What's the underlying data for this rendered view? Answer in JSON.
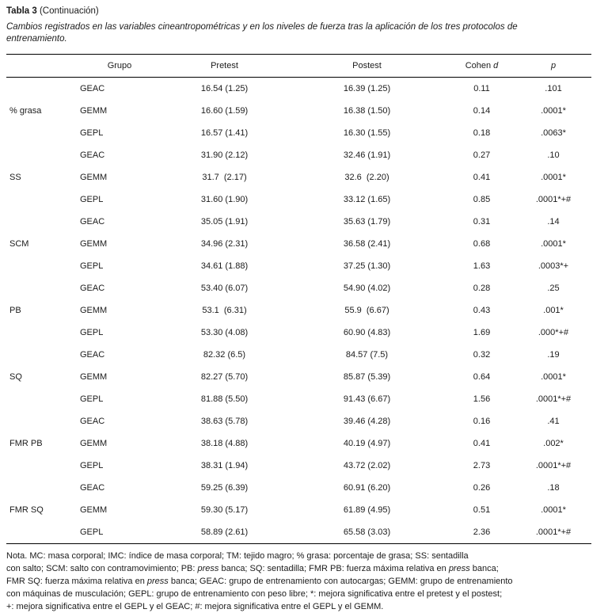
{
  "page": {
    "background": "#ffffff",
    "text_color": "#1b1b1b"
  },
  "title": {
    "bold": "Tabla 3",
    "rest": " (Continuación)"
  },
  "subtitle": {
    "line1": "Cambios registrados en las variables cineantropométricas y en los niveles de fuerza tras la aplicación de los tres protocolos de",
    "line2": "entrenamiento."
  },
  "table": {
    "headers": {
      "grupo": "Grupo",
      "pretest": "Pretest",
      "postest": "Postest",
      "cohen_prefix": "Cohen ",
      "cohen_italic": "d",
      "p": "p"
    },
    "groups": [
      {
        "label": "% grasa",
        "rows": [
          {
            "grupo": "GEAC",
            "pretest": "16.54 (1.25)",
            "postest": "16.39 (1.25)",
            "cohen": "0.11",
            "p": ".101"
          },
          {
            "grupo": "GEMM",
            "pretest": "16.60 (1.59)",
            "postest": "16.38 (1.50)",
            "cohen": "0.14",
            "p": ".0001*"
          },
          {
            "grupo": "GEPL",
            "pretest": "16.57 (1.41)",
            "postest": "16.30 (1.55)",
            "cohen": "0.18",
            "p": ".0063*"
          }
        ]
      },
      {
        "label": "SS",
        "rows": [
          {
            "grupo": "GEAC",
            "pretest": "31.90 (2.12)",
            "postest": "32.46 (1.91)",
            "cohen": "0.27",
            "p": ".10"
          },
          {
            "grupo": "GEMM",
            "pretest": "31.7  (2.17)",
            "postest": "32.6  (2.20)",
            "cohen": "0.41",
            "p": ".0001*"
          },
          {
            "grupo": "GEPL",
            "pretest": "31.60 (1.90)",
            "postest": "33.12 (1.65)",
            "cohen": "0.85",
            "p": ".0001*+#"
          }
        ]
      },
      {
        "label": "SCM",
        "rows": [
          {
            "grupo": "GEAC",
            "pretest": "35.05 (1.91)",
            "postest": "35.63 (1.79)",
            "cohen": "0.31",
            "p": ".14"
          },
          {
            "grupo": "GEMM",
            "pretest": "34.96 (2.31)",
            "postest": "36.58 (2.41)",
            "cohen": "0.68",
            "p": ".0001*"
          },
          {
            "grupo": "GEPL",
            "pretest": "34.61 (1.88)",
            "postest": "37.25 (1.30)",
            "cohen": "1.63",
            "p": ".0003*+"
          }
        ]
      },
      {
        "label": "PB",
        "rows": [
          {
            "grupo": "GEAC",
            "pretest": "53.40 (6.07)",
            "postest": "54.90 (4.02)",
            "cohen": "0.28",
            "p": ".25"
          },
          {
            "grupo": "GEMM",
            "pretest": "53.1  (6.31)",
            "postest": "55.9  (6.67)",
            "cohen": "0.43",
            "p": ".001*"
          },
          {
            "grupo": "GEPL",
            "pretest": "53.30 (4.08)",
            "postest": "60.90 (4.83)",
            "cohen": "1.69",
            "p": ".000*+#"
          }
        ]
      },
      {
        "label": "SQ",
        "rows": [
          {
            "grupo": "GEAC",
            "pretest": "82.32 (6.5)",
            "postest": "84.57 (7.5)",
            "cohen": "0.32",
            "p": ".19"
          },
          {
            "grupo": "GEMM",
            "pretest": "82.27 (5.70)",
            "postest": "85.87 (5.39)",
            "cohen": "0.64",
            "p": ".0001*"
          },
          {
            "grupo": "GEPL",
            "pretest": "81.88 (5.50)",
            "postest": "91.43 (6.67)",
            "cohen": "1.56",
            "p": ".0001*+#"
          }
        ]
      },
      {
        "label": "FMR PB",
        "rows": [
          {
            "grupo": "GEAC",
            "pretest": "38.63 (5.78)",
            "postest": "39.46 (4.28)",
            "cohen": "0.16",
            "p": ".41"
          },
          {
            "grupo": "GEMM",
            "pretest": "38.18 (4.88)",
            "postest": "40.19 (4.97)",
            "cohen": "0.41",
            "p": ".002*"
          },
          {
            "grupo": "GEPL",
            "pretest": "38.31 (1.94)",
            "postest": "43.72 (2.02)",
            "cohen": "2.73",
            "p": ".0001*+#"
          }
        ]
      },
      {
        "label": "FMR SQ",
        "rows": [
          {
            "grupo": "GEAC",
            "pretest": "59.25 (6.39)",
            "postest": "60.91 (6.20)",
            "cohen": "0.26",
            "p": ".18"
          },
          {
            "grupo": "GEMM",
            "pretest": "59.30 (5.17)",
            "postest": "61.89 (4.95)",
            "cohen": "0.51",
            "p": ".0001*"
          },
          {
            "grupo": "GEPL",
            "pretest": "58.89 (2.61)",
            "postest": "65.58 (3.03)",
            "cohen": "2.36",
            "p": ".0001*+#"
          }
        ]
      }
    ]
  },
  "note": {
    "lines": [
      [
        {
          "t": "Nota. MC: masa corporal; IMC: índice de masa corporal; TM: tejido magro; % grasa: porcentaje de grasa; SS: sentadilla"
        }
      ],
      [
        {
          "t": "con salto; SCM: salto con contramovimiento; PB: "
        },
        {
          "t": "press",
          "i": 1
        },
        {
          "t": " banca; SQ: sentadilla; FMR PB: fuerza máxima relativa en "
        },
        {
          "t": "press",
          "i": 1
        },
        {
          "t": " banca;"
        }
      ],
      [
        {
          "t": "FMR SQ: fuerza máxima relativa en "
        },
        {
          "t": "press",
          "i": 1
        },
        {
          "t": " banca; GEAC: grupo de entrenamiento con autocargas; GEMM: grupo de entrenamiento"
        }
      ],
      [
        {
          "t": "con máquinas de musculación; GEPL: grupo de entrenamiento con peso libre; *: mejora significativa entre el pretest y el postest;"
        }
      ],
      [
        {
          "t": "+: mejora significativa entre el GEPL y el GEAC; #: mejora significativa entre el GEPL y el GEMM."
        }
      ]
    ]
  }
}
